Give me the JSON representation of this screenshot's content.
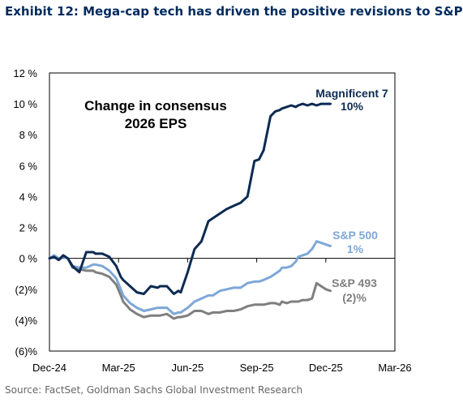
{
  "exhibit_title": "Exhibit 12: Mega-cap tech has driven the positive revisions to S&P",
  "source": "Source: FactSet, Goldman Sachs Global Investment Research",
  "chart_data": {
    "type": "line",
    "title_lines": [
      "Change in consensus",
      "2026 EPS"
    ],
    "ylim": [
      -6,
      12
    ],
    "yticks": [
      12,
      10,
      8,
      6,
      4,
      2,
      0,
      -2,
      -4,
      -6
    ],
    "ytick_labels": [
      "12 %",
      "10 %",
      "8 %",
      "6 %",
      "4 %",
      "2 %",
      "0 %",
      "(2)%",
      "(4)%",
      "(6)%"
    ],
    "xlim": [
      0,
      15
    ],
    "xticks": [
      0,
      3,
      6,
      9,
      12,
      15
    ],
    "xtick_labels": [
      "Dec-24",
      "Mar-25",
      "Jun-25",
      "Sep-25",
      "Dec-25",
      "Mar-26"
    ],
    "grid": false,
    "colors": {
      "mag7": "#0d2b52",
      "sp500": "#7ea7d8",
      "sp493": "#7f7f7f"
    },
    "series": [
      {
        "name": "Magnificent 7",
        "end_label": "10%",
        "x": [
          0,
          0.2,
          0.4,
          0.6,
          0.8,
          1.0,
          1.3,
          1.6,
          1.9,
          2.0,
          2.3,
          2.6,
          2.9,
          3.1,
          3.2,
          3.5,
          3.8,
          4.1,
          4.4,
          4.7,
          4.8,
          5.1,
          5.4,
          5.6,
          5.7,
          6.0,
          6.3,
          6.6,
          6.9,
          7.1,
          7.4,
          7.7,
          8.0,
          8.3,
          8.6,
          8.9,
          9.1,
          9.3,
          9.6,
          9.8,
          10.0,
          10.1,
          10.3,
          10.5,
          10.7,
          10.8,
          11.0,
          11.2,
          11.4,
          11.6,
          11.8,
          12.0,
          12.2
        ],
        "values": [
          0,
          0.1,
          -0.1,
          0.2,
          0,
          -0.5,
          -0.9,
          0.4,
          0.4,
          0.3,
          0.3,
          0.1,
          -0.5,
          -1.2,
          -1.4,
          -1.8,
          -2.2,
          -2.3,
          -1.8,
          -1.9,
          -1.8,
          -1.8,
          -2.3,
          -2.1,
          -2.2,
          -0.9,
          0.6,
          1.1,
          2.4,
          2.6,
          2.9,
          3.2,
          3.4,
          3.6,
          4.0,
          6.3,
          6.4,
          7.0,
          9.2,
          9.5,
          9.6,
          9.7,
          9.8,
          9.9,
          9.8,
          9.9,
          10.0,
          9.9,
          10.0,
          9.9,
          10.0,
          10.0,
          10.0
        ]
      },
      {
        "name": "S&P 500",
        "end_label": "1%",
        "x": [
          0,
          0.2,
          0.4,
          0.6,
          0.8,
          1.0,
          1.3,
          1.6,
          1.9,
          2.0,
          2.3,
          2.6,
          2.9,
          3.1,
          3.2,
          3.5,
          3.8,
          4.1,
          4.4,
          4.7,
          4.8,
          5.1,
          5.4,
          5.6,
          5.7,
          6.0,
          6.3,
          6.6,
          6.9,
          7.1,
          7.4,
          7.7,
          8.0,
          8.3,
          8.6,
          8.9,
          9.1,
          9.3,
          9.6,
          9.8,
          10.0,
          10.1,
          10.3,
          10.5,
          10.7,
          10.8,
          11.0,
          11.2,
          11.4,
          11.6,
          11.8,
          12.0,
          12.2
        ],
        "values": [
          0,
          0.2,
          0,
          0.1,
          0,
          -0.5,
          -0.6,
          -0.6,
          -0.4,
          -0.4,
          -0.5,
          -0.8,
          -1.3,
          -2.0,
          -2.4,
          -2.9,
          -3.2,
          -3.4,
          -3.3,
          -3.2,
          -3.2,
          -3.2,
          -3.6,
          -3.5,
          -3.5,
          -3.2,
          -2.8,
          -2.6,
          -2.4,
          -2.4,
          -2.1,
          -2.0,
          -1.9,
          -1.9,
          -1.6,
          -1.5,
          -1.5,
          -1.4,
          -1.2,
          -1.0,
          -0.8,
          -0.6,
          -0.6,
          -0.5,
          -0.2,
          0.1,
          0.2,
          0.3,
          0.6,
          1.1,
          1.0,
          0.9,
          0.8
        ]
      },
      {
        "name": "S&P 493",
        "end_label": "(2)%",
        "x": [
          0,
          0.2,
          0.4,
          0.6,
          0.8,
          1.0,
          1.3,
          1.6,
          1.9,
          2.0,
          2.3,
          2.6,
          2.9,
          3.1,
          3.2,
          3.5,
          3.8,
          4.1,
          4.4,
          4.7,
          4.8,
          5.1,
          5.4,
          5.6,
          5.7,
          6.0,
          6.3,
          6.6,
          6.9,
          7.1,
          7.4,
          7.7,
          8.0,
          8.3,
          8.6,
          8.9,
          9.1,
          9.3,
          9.6,
          9.8,
          10.0,
          10.1,
          10.3,
          10.5,
          10.7,
          10.8,
          11.0,
          11.2,
          11.4,
          11.6,
          11.8,
          12.0,
          12.2
        ],
        "values": [
          0,
          0.1,
          -0.1,
          0.1,
          0,
          -0.6,
          -0.7,
          -0.8,
          -0.8,
          -0.9,
          -1.0,
          -1.2,
          -1.7,
          -2.4,
          -2.8,
          -3.3,
          -3.6,
          -3.8,
          -3.7,
          -3.7,
          -3.7,
          -3.6,
          -3.9,
          -3.8,
          -3.8,
          -3.7,
          -3.4,
          -3.4,
          -3.6,
          -3.5,
          -3.5,
          -3.4,
          -3.4,
          -3.3,
          -3.1,
          -3.0,
          -3.0,
          -3.0,
          -2.9,
          -2.9,
          -3.0,
          -2.8,
          -2.9,
          -2.8,
          -2.8,
          -2.8,
          -2.7,
          -2.7,
          -2.6,
          -1.6,
          -1.8,
          -2.0,
          -2.1
        ]
      }
    ]
  }
}
